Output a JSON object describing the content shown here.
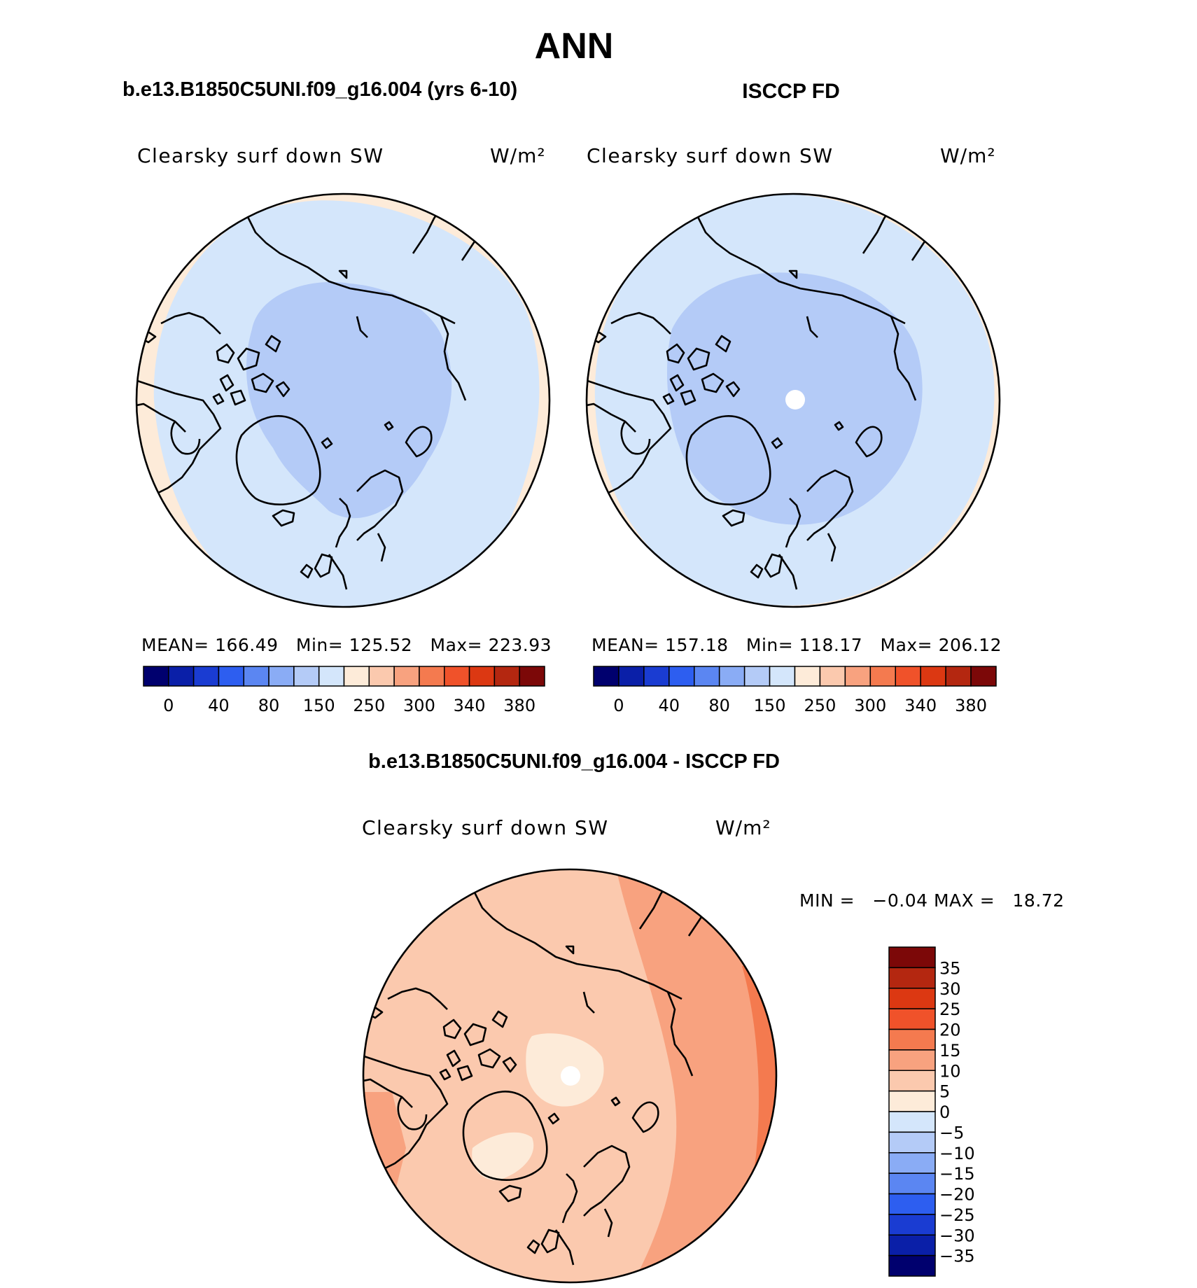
{
  "page": {
    "title": "ANN"
  },
  "panels": [
    {
      "heading": "b.e13.B1850C5UNI.f09_g16.004 (yrs 6-10)",
      "variable": "Clearsky surf down SW",
      "units": "W/m²",
      "stats": {
        "mean_label": "MEAN=",
        "mean": "166.49",
        "min_label": "Min=",
        "min": "125.52",
        "max_label": "Max=",
        "max": "223.93"
      }
    },
    {
      "heading": "ISCCP FD",
      "variable": "Clearsky surf down SW",
      "units": "W/m²",
      "stats": {
        "mean_label": "MEAN=",
        "mean": "157.18",
        "min_label": "Min=",
        "min": "118.17",
        "max_label": "Max=",
        "max": "206.12"
      }
    },
    {
      "heading": "b.e13.B1850C5UNI.f09_g16.004 - ISCCP FD",
      "variable": "Clearsky surf down SW",
      "units": "W/m²",
      "stats": {
        "min_label": "MIN =",
        "min": "−0.04",
        "max_label": "MAX =",
        "max": "18.72"
      }
    }
  ],
  "colorbar_main": {
    "colors": [
      "#00006e",
      "#0a1fa8",
      "#1a3cd2",
      "#2d5ef0",
      "#5b86f2",
      "#8aacf5",
      "#b4cbf7",
      "#d4e6fb",
      "#fdebd9",
      "#fbc9ae",
      "#f8a27f",
      "#f47a4f",
      "#f0522a",
      "#dc3812",
      "#b42710",
      "#7c0808"
    ],
    "labels": [
      "0",
      "40",
      "80",
      "150",
      "250",
      "300",
      "340",
      "380"
    ]
  },
  "colorbar_diff": {
    "colors": [
      "#00006e",
      "#0a1fa8",
      "#1a3cd2",
      "#2d5ef0",
      "#5b86f2",
      "#8aacf5",
      "#b4cbf7",
      "#d4e6fb",
      "#fdebd9",
      "#fbc9ae",
      "#f8a27f",
      "#f47a4f",
      "#f0522a",
      "#dc3812",
      "#b42710",
      "#7c0808"
    ],
    "labels": [
      "35",
      "30",
      "25",
      "20",
      "15",
      "10",
      "5",
      "0",
      "−5",
      "−10",
      "−15",
      "−20",
      "−25",
      "−30",
      "−35"
    ]
  },
  "map_colors": {
    "light_blue": "#d4e6fb",
    "mid_blue": "#b4cbf7",
    "peach": "#fdebd9",
    "salmon": "#fbc9ae",
    "orange": "#f8a27f",
    "deep_orange": "#f47a4f"
  }
}
